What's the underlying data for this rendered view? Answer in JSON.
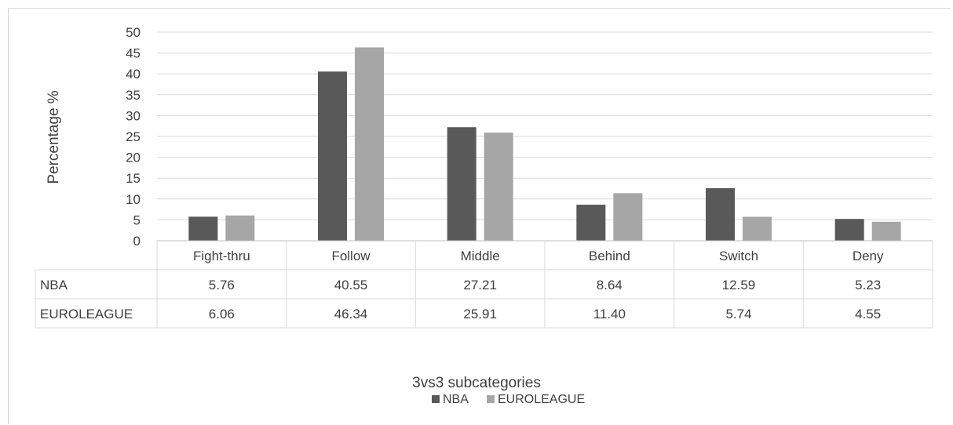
{
  "chart_data": {
    "type": "bar",
    "categories": [
      "Fight-thru",
      "Follow",
      "Middle",
      "Behind",
      "Switch",
      "Deny"
    ],
    "series": [
      {
        "name": "NBA",
        "values": [
          5.76,
          40.55,
          27.21,
          8.64,
          12.59,
          5.23
        ],
        "labels": [
          "5.76",
          "40.55",
          "27.21",
          "8.64",
          "12.59",
          "5.23"
        ],
        "color": "#595959"
      },
      {
        "name": "EUROLEAGUE",
        "values": [
          6.06,
          46.34,
          25.91,
          11.4,
          5.74,
          4.55
        ],
        "labels": [
          "6.06",
          "46.34",
          "25.91",
          "11.40",
          "5.74",
          "4.55"
        ],
        "color": "#a6a6a6"
      }
    ],
    "ylabel": "Percentage %",
    "xlabel": "3vs3 subcategories",
    "ylim": [
      0,
      50
    ],
    "yticks": [
      0,
      5,
      10,
      15,
      20,
      25,
      30,
      35,
      40,
      45,
      50
    ],
    "grid": true,
    "data_table": true,
    "legend": "bottom-center"
  }
}
